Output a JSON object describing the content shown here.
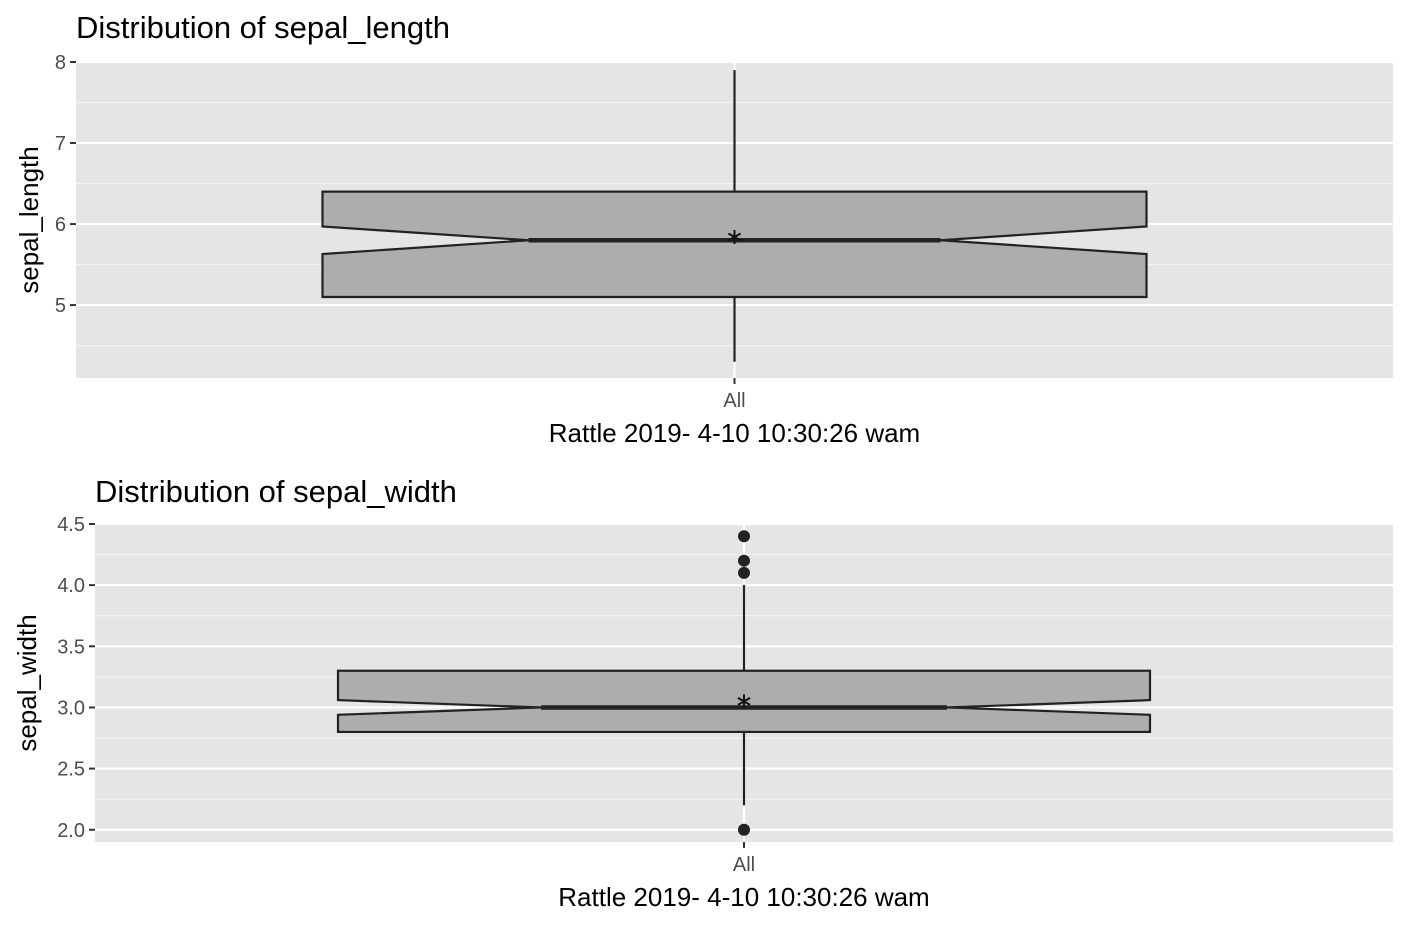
{
  "chart_data": [
    {
      "type": "boxplot",
      "title": "Distribution of sepal_length",
      "xlabel": "Rattle 2019- 4-10 10:30:26 wam",
      "ylabel": "sepal_length",
      "categories": [
        "All"
      ],
      "ylim": [
        4.1,
        8.0
      ],
      "y_ticks": [
        5,
        6,
        7,
        8
      ],
      "y_tick_labels": [
        "5",
        "6",
        "7",
        "8"
      ],
      "notched": true,
      "box": {
        "whisker_low": 4.3,
        "q1": 5.1,
        "notch_low": 5.63,
        "median": 5.8,
        "notch_high": 5.97,
        "q3": 6.4,
        "whisker_high": 7.9,
        "mean": 5.84
      },
      "outliers": [],
      "fill_color": "#adadad",
      "grid": true
    },
    {
      "type": "boxplot",
      "title": "Distribution of sepal_width",
      "xlabel": "Rattle 2019- 4-10 10:30:26 wam",
      "ylabel": "sepal_width",
      "categories": [
        "All"
      ],
      "ylim": [
        1.9,
        4.5
      ],
      "y_ticks": [
        2.0,
        2.5,
        3.0,
        3.5,
        4.0,
        4.5
      ],
      "y_tick_labels": [
        "2.0",
        "2.5",
        "3.0",
        "3.5",
        "4.0",
        "4.5"
      ],
      "notched": true,
      "box": {
        "whisker_low": 2.2,
        "q1": 2.8,
        "notch_low": 2.94,
        "median": 3.0,
        "notch_high": 3.06,
        "q3": 3.3,
        "whisker_high": 4.0,
        "mean": 3.05
      },
      "outliers": [
        4.1,
        4.2,
        4.4,
        2.0
      ],
      "fill_color": "#adadad",
      "grid": true
    }
  ]
}
